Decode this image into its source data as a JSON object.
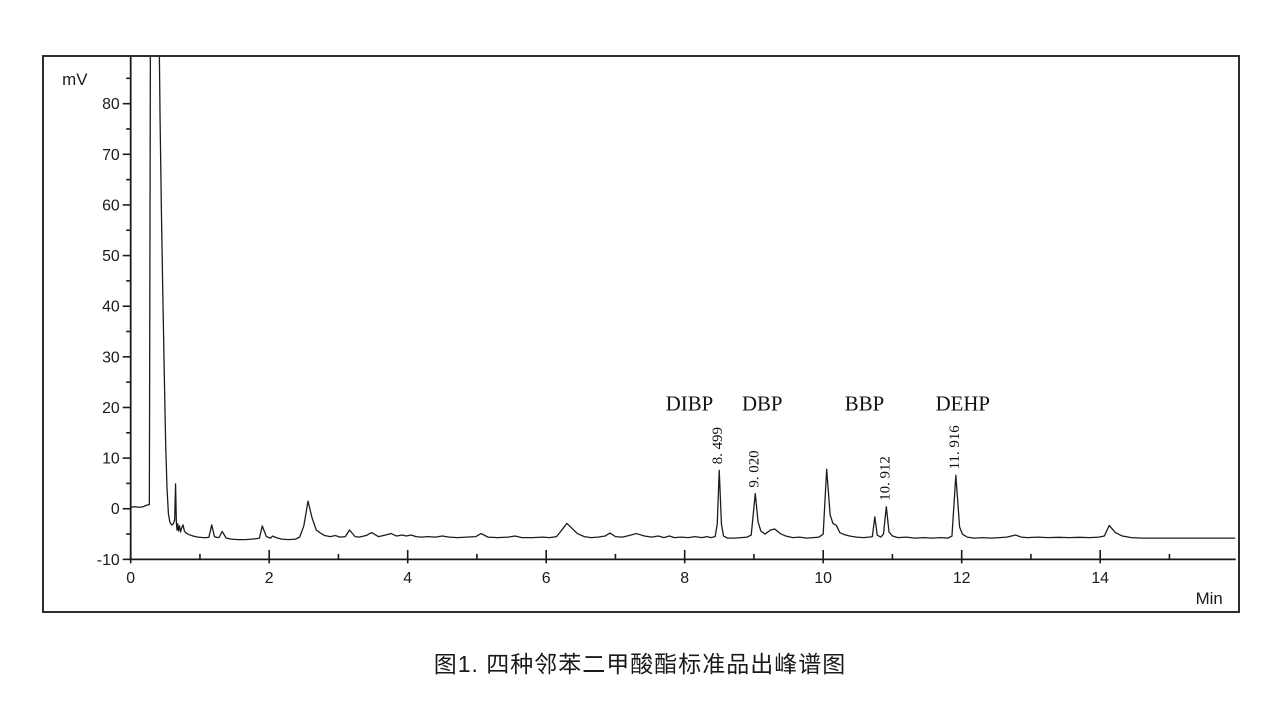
{
  "figure": {
    "caption": "图1. 四种邻苯二甲酸酯标准品出峰谱图",
    "y_axis": {
      "label": "mV",
      "min": -10,
      "max": 89,
      "major_ticks": [
        -10,
        0,
        10,
        20,
        30,
        40,
        50,
        60,
        70,
        80
      ],
      "minor_step": 5
    },
    "x_axis": {
      "label": "Min",
      "min": 0,
      "max": 15.95,
      "major_ticks": [
        0,
        2,
        4,
        6,
        8,
        10,
        12,
        14
      ],
      "minor_step": 1
    },
    "peaks": [
      {
        "name": "DIBP",
        "retention_time": 8.499,
        "retention_time_label": "8. 499"
      },
      {
        "name": "DBP",
        "retention_time": 9.02,
        "retention_time_label": "9. 020"
      },
      {
        "name": "BBP",
        "retention_time": 10.912,
        "retention_time_label": "10. 912"
      },
      {
        "name": "DEHP",
        "retention_time": 11.916,
        "retention_time_label": "11. 916"
      }
    ],
    "trace_color": "#1c1c1c"
  },
  "chart_data": {
    "type": "line",
    "title": "图1. 四种邻苯二甲酸酯标准品出峰谱图",
    "xlabel": "Min",
    "ylabel": "mV",
    "xlim": [
      0,
      15.95
    ],
    "ylim": [
      -10,
      89
    ],
    "grid": false,
    "annotations": [
      {
        "name": "DIBP",
        "rt": 8.499,
        "rt_label": "8. 499",
        "apex_mv": 7.6,
        "name_dx": -30
      },
      {
        "name": "DBP",
        "rt": 9.02,
        "rt_label": "9. 020",
        "apex_mv": 3.0,
        "name_dx": 7
      },
      {
        "name": "BBP",
        "rt": 10.912,
        "rt_label": "10. 912",
        "apex_mv": 0.4,
        "name_dx": -22
      },
      {
        "name": "DEHP",
        "rt": 11.916,
        "rt_label": "11. 916",
        "apex_mv": 6.6,
        "name_dx": 7
      }
    ],
    "series": [
      {
        "name": "chromatogram",
        "points": [
          [
            0,
            0.3
          ],
          [
            0.06,
            0.4
          ],
          [
            0.12,
            0.3
          ],
          [
            0.18,
            0.4
          ],
          [
            0.23,
            0.7
          ],
          [
            0.27,
            0.8
          ],
          [
            0.285,
            95
          ],
          [
            0.41,
            95
          ],
          [
            0.425,
            77
          ],
          [
            0.445,
            58
          ],
          [
            0.465,
            42
          ],
          [
            0.485,
            27
          ],
          [
            0.505,
            13
          ],
          [
            0.525,
            4
          ],
          [
            0.545,
            -1
          ],
          [
            0.565,
            -2.6
          ],
          [
            0.59,
            -3.2
          ],
          [
            0.615,
            -3.0
          ],
          [
            0.635,
            -2.2
          ],
          [
            0.648,
            4.9
          ],
          [
            0.66,
            -2.5
          ],
          [
            0.668,
            -4.2
          ],
          [
            0.68,
            -3.0
          ],
          [
            0.69,
            -4.4
          ],
          [
            0.705,
            -3.4
          ],
          [
            0.72,
            -4.6
          ],
          [
            0.735,
            -3.8
          ],
          [
            0.755,
            -3.2
          ],
          [
            0.775,
            -4.4
          ],
          [
            0.8,
            -4.8
          ],
          [
            0.84,
            -5.1
          ],
          [
            0.9,
            -5.4
          ],
          [
            0.97,
            -5.6
          ],
          [
            1.05,
            -5.7
          ],
          [
            1.1,
            -5.7
          ],
          [
            1.13,
            -5.6
          ],
          [
            1.17,
            -3.2
          ],
          [
            1.21,
            -5.5
          ],
          [
            1.25,
            -5.7
          ],
          [
            1.28,
            -5.6
          ],
          [
            1.32,
            -4.5
          ],
          [
            1.38,
            -5.8
          ],
          [
            1.45,
            -6.0
          ],
          [
            1.55,
            -6.1
          ],
          [
            1.65,
            -6.1
          ],
          [
            1.75,
            -6.0
          ],
          [
            1.82,
            -5.9
          ],
          [
            1.86,
            -5.8
          ],
          [
            1.9,
            -3.4
          ],
          [
            1.96,
            -5.5
          ],
          [
            2.02,
            -5.8
          ],
          [
            2.05,
            -5.4
          ],
          [
            2.1,
            -5.7
          ],
          [
            2.18,
            -6.0
          ],
          [
            2.28,
            -6.1
          ],
          [
            2.38,
            -6.0
          ],
          [
            2.44,
            -5.6
          ],
          [
            2.5,
            -3.4
          ],
          [
            2.56,
            1.5
          ],
          [
            2.62,
            -1.8
          ],
          [
            2.68,
            -4.2
          ],
          [
            2.74,
            -4.8
          ],
          [
            2.8,
            -5.3
          ],
          [
            2.88,
            -5.5
          ],
          [
            2.96,
            -5.3
          ],
          [
            3.02,
            -5.6
          ],
          [
            3.1,
            -5.5
          ],
          [
            3.16,
            -4.2
          ],
          [
            3.24,
            -5.5
          ],
          [
            3.3,
            -5.6
          ],
          [
            3.4,
            -5.3
          ],
          [
            3.48,
            -4.7
          ],
          [
            3.58,
            -5.5
          ],
          [
            3.68,
            -5.2
          ],
          [
            3.76,
            -4.9
          ],
          [
            3.84,
            -5.4
          ],
          [
            3.92,
            -5.2
          ],
          [
            3.98,
            -5.4
          ],
          [
            4.05,
            -5.2
          ],
          [
            4.12,
            -5.5
          ],
          [
            4.2,
            -5.6
          ],
          [
            4.3,
            -5.5
          ],
          [
            4.4,
            -5.6
          ],
          [
            4.5,
            -5.4
          ],
          [
            4.6,
            -5.6
          ],
          [
            4.72,
            -5.7
          ],
          [
            4.85,
            -5.6
          ],
          [
            4.98,
            -5.5
          ],
          [
            5.06,
            -4.9
          ],
          [
            5.16,
            -5.6
          ],
          [
            5.3,
            -5.7
          ],
          [
            5.45,
            -5.6
          ],
          [
            5.55,
            -5.4
          ],
          [
            5.65,
            -5.7
          ],
          [
            5.8,
            -5.7
          ],
          [
            5.95,
            -5.6
          ],
          [
            6.05,
            -5.7
          ],
          [
            6.15,
            -5.5
          ],
          [
            6.3,
            -2.9
          ],
          [
            6.45,
            -4.9
          ],
          [
            6.55,
            -5.5
          ],
          [
            6.65,
            -5.7
          ],
          [
            6.75,
            -5.6
          ],
          [
            6.85,
            -5.4
          ],
          [
            6.92,
            -4.8
          ],
          [
            7.0,
            -5.5
          ],
          [
            7.1,
            -5.6
          ],
          [
            7.2,
            -5.3
          ],
          [
            7.3,
            -4.9
          ],
          [
            7.42,
            -5.4
          ],
          [
            7.52,
            -5.6
          ],
          [
            7.62,
            -5.4
          ],
          [
            7.7,
            -5.7
          ],
          [
            7.78,
            -5.4
          ],
          [
            7.85,
            -5.7
          ],
          [
            7.95,
            -5.6
          ],
          [
            8.05,
            -5.7
          ],
          [
            8.15,
            -5.5
          ],
          [
            8.25,
            -5.7
          ],
          [
            8.32,
            -5.5
          ],
          [
            8.38,
            -5.7
          ],
          [
            8.44,
            -5.5
          ],
          [
            8.47,
            -3.0
          ],
          [
            8.499,
            7.6
          ],
          [
            8.53,
            -3.0
          ],
          [
            8.56,
            -5.4
          ],
          [
            8.62,
            -5.8
          ],
          [
            8.72,
            -5.8
          ],
          [
            8.82,
            -5.7
          ],
          [
            8.9,
            -5.6
          ],
          [
            8.96,
            -5.2
          ],
          [
            9.02,
            3.0
          ],
          [
            9.06,
            -2.6
          ],
          [
            9.1,
            -4.4
          ],
          [
            9.16,
            -5.0
          ],
          [
            9.24,
            -4.2
          ],
          [
            9.3,
            -4.0
          ],
          [
            9.38,
            -4.9
          ],
          [
            9.46,
            -5.4
          ],
          [
            9.56,
            -5.7
          ],
          [
            9.66,
            -5.6
          ],
          [
            9.76,
            -5.8
          ],
          [
            9.86,
            -5.7
          ],
          [
            9.94,
            -5.6
          ],
          [
            10.0,
            -5.0
          ],
          [
            10.05,
            7.8
          ],
          [
            10.1,
            -1.2
          ],
          [
            10.14,
            -2.9
          ],
          [
            10.19,
            -3.3
          ],
          [
            10.24,
            -4.7
          ],
          [
            10.3,
            -5.1
          ],
          [
            10.38,
            -5.4
          ],
          [
            10.48,
            -5.6
          ],
          [
            10.58,
            -5.7
          ],
          [
            10.66,
            -5.6
          ],
          [
            10.71,
            -5.5
          ],
          [
            10.745,
            -1.6
          ],
          [
            10.78,
            -5.2
          ],
          [
            10.83,
            -5.6
          ],
          [
            10.87,
            -5.0
          ],
          [
            10.912,
            0.4
          ],
          [
            10.95,
            -4.6
          ],
          [
            11.0,
            -5.4
          ],
          [
            11.08,
            -5.7
          ],
          [
            11.2,
            -5.6
          ],
          [
            11.32,
            -5.8
          ],
          [
            11.45,
            -5.7
          ],
          [
            11.58,
            -5.8
          ],
          [
            11.7,
            -5.7
          ],
          [
            11.8,
            -5.8
          ],
          [
            11.86,
            -5.4
          ],
          [
            11.916,
            6.6
          ],
          [
            11.97,
            -3.6
          ],
          [
            12.01,
            -5.0
          ],
          [
            12.08,
            -5.6
          ],
          [
            12.18,
            -5.8
          ],
          [
            12.3,
            -5.7
          ],
          [
            12.42,
            -5.8
          ],
          [
            12.55,
            -5.7
          ],
          [
            12.65,
            -5.6
          ],
          [
            12.72,
            -5.4
          ],
          [
            12.78,
            -5.2
          ],
          [
            12.86,
            -5.6
          ],
          [
            12.95,
            -5.7
          ],
          [
            13.1,
            -5.6
          ],
          [
            13.25,
            -5.7
          ],
          [
            13.4,
            -5.65
          ],
          [
            13.55,
            -5.7
          ],
          [
            13.7,
            -5.65
          ],
          [
            13.85,
            -5.7
          ],
          [
            13.98,
            -5.6
          ],
          [
            14.06,
            -5.4
          ],
          [
            14.13,
            -3.3
          ],
          [
            14.22,
            -4.7
          ],
          [
            14.32,
            -5.4
          ],
          [
            14.45,
            -5.7
          ],
          [
            14.6,
            -5.8
          ],
          [
            14.8,
            -5.8
          ],
          [
            15.1,
            -5.8
          ],
          [
            15.5,
            -5.8
          ],
          [
            15.95,
            -5.8
          ]
        ]
      }
    ]
  }
}
